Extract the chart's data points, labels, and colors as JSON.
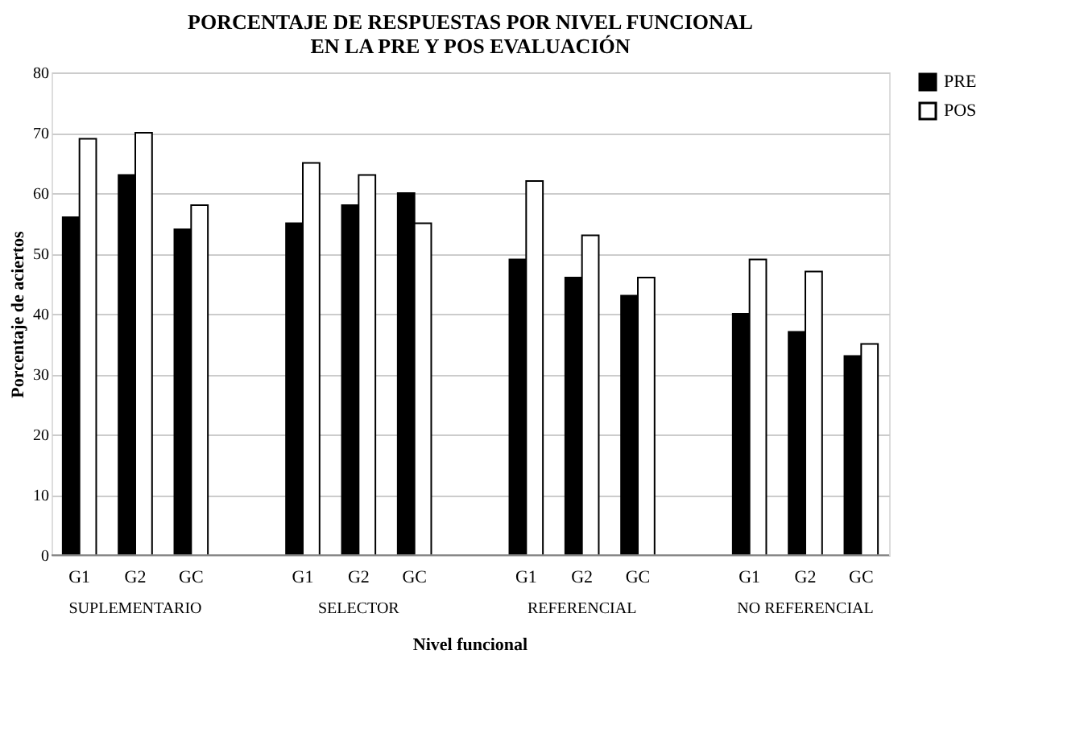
{
  "chart_data": {
    "type": "bar",
    "title": [
      "PORCENTAJE DE RESPUESTAS POR NIVEL FUNCIONAL",
      "EN LA PRE Y POS EVALUACIÓN"
    ],
    "xlabel": "Nivel funcional",
    "ylabel": "Porcentaje de aciertos",
    "categories": [
      "G1",
      "G2",
      "GC",
      "G1",
      "G2",
      "GC",
      "G1",
      "G2",
      "GC",
      "G1",
      "G2",
      "GC"
    ],
    "annotations": [
      "SUPLEMENTARIO",
      "SELECTOR",
      "REFERENCIAL",
      "NO REFERENCIAL"
    ],
    "series": [
      {
        "name": "PRE",
        "color": "#000000",
        "values": [
          56,
          63,
          54,
          55,
          58,
          60,
          49,
          46,
          43,
          40,
          37,
          33
        ]
      },
      {
        "name": "POS",
        "color": "#ffffff",
        "values": [
          69,
          70,
          58,
          65,
          63,
          55,
          62,
          53,
          46,
          49,
          47,
          35
        ]
      }
    ],
    "ylim": [
      0,
      80
    ],
    "yticks": [
      0,
      10,
      20,
      30,
      40,
      50,
      60,
      70,
      80
    ],
    "grid": "y",
    "legend": "right"
  }
}
